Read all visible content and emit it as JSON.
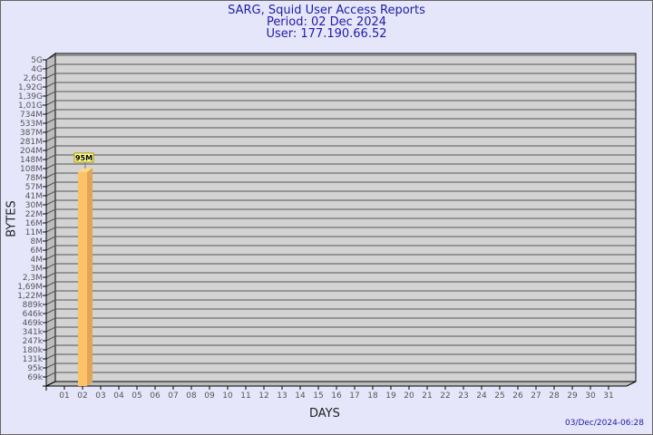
{
  "header": {
    "title": "SARG, Squid User Access Reports",
    "period": "Period: 02 Dec 2024",
    "user": "User: 177.190.66.52"
  },
  "timestamp": "03/Dec/2024-06:28",
  "chart_data": {
    "type": "bar",
    "title": "SARG, Squid User Access Reports",
    "xlabel": "DAYS",
    "ylabel": "BYTES",
    "yscale": "log",
    "y_tick_labels": [
      "5G",
      "4G",
      "2,6G",
      "1,92G",
      "1,39G",
      "1,01G",
      "734M",
      "533M",
      "387M",
      "281M",
      "204M",
      "148M",
      "108M",
      "78M",
      "57M",
      "41M",
      "30M",
      "22M",
      "16M",
      "11M",
      "8M",
      "6M",
      "4M",
      "3M",
      "2,3M",
      "1,69M",
      "1,22M",
      "889k",
      "646k",
      "469k",
      "341k",
      "247k",
      "180k",
      "131k",
      "95k",
      "69k"
    ],
    "categories": [
      "01",
      "02",
      "03",
      "04",
      "05",
      "06",
      "07",
      "08",
      "09",
      "10",
      "11",
      "12",
      "13",
      "14",
      "15",
      "16",
      "17",
      "18",
      "19",
      "20",
      "21",
      "22",
      "23",
      "24",
      "25",
      "26",
      "27",
      "28",
      "29",
      "30",
      "31"
    ],
    "values": [
      null,
      "95M",
      null,
      null,
      null,
      null,
      null,
      null,
      null,
      null,
      null,
      null,
      null,
      null,
      null,
      null,
      null,
      null,
      null,
      null,
      null,
      null,
      null,
      null,
      null,
      null,
      null,
      null,
      null,
      null,
      null
    ],
    "data_labels": [
      {
        "category": "02",
        "label": "95M"
      }
    ],
    "grid": true,
    "colors": {
      "bar": "#fdc168",
      "bar_side": "#e0a555",
      "wall": "#d3d3d3",
      "label_bg": "#ffff99"
    }
  }
}
